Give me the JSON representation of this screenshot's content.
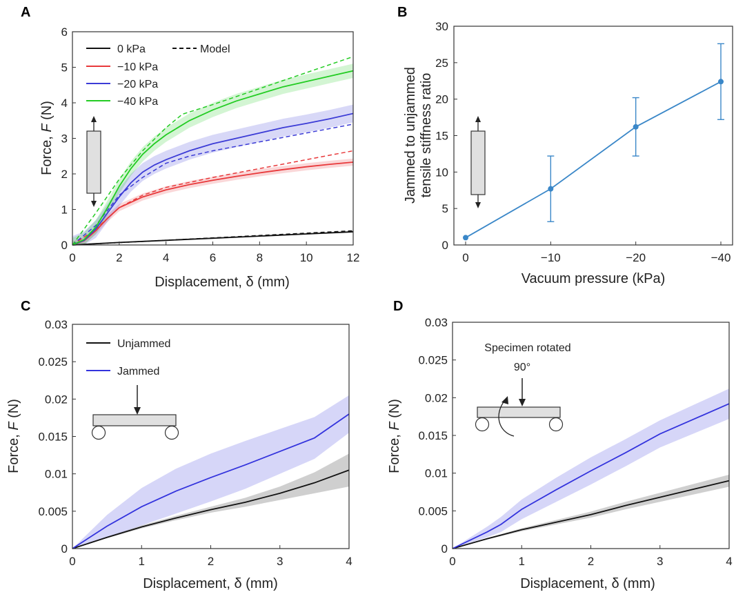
{
  "chart_data": [
    {
      "id": "A",
      "panel_label": "A",
      "type": "line",
      "xlabel_prefix": "Displacement,",
      "xlabel_symbol": "δ",
      "xlabel_unit": "(mm)",
      "ylabel_prefix": "Force,",
      "ylabel_symbol": "F",
      "ylabel_unit": "(N)",
      "xlim": [
        0,
        12
      ],
      "ylim": [
        0,
        6
      ],
      "xticks": [
        0,
        2,
        4,
        6,
        8,
        10,
        12
      ],
      "yticks": [
        0,
        1,
        2,
        3,
        4,
        5,
        6
      ],
      "grid": false,
      "legend_position": "top-left",
      "model_legend": "Model",
      "series": [
        {
          "name": "0 kPa",
          "color": "#111111",
          "x": [
            0,
            2,
            4,
            6,
            8,
            10,
            12
          ],
          "y": [
            0,
            0.07,
            0.13,
            0.19,
            0.25,
            0.31,
            0.37
          ],
          "band": 0.02,
          "model_x": [
            0,
            12
          ],
          "model_y": [
            0,
            0.4
          ]
        },
        {
          "name": "−10 kPa",
          "color": "#e8383a",
          "x": [
            0,
            0.5,
            1,
            1.5,
            2,
            3,
            4,
            5,
            6,
            7,
            8,
            9,
            10,
            11,
            12
          ],
          "y": [
            0,
            0.12,
            0.4,
            0.75,
            1.05,
            1.35,
            1.55,
            1.7,
            1.82,
            1.93,
            2.03,
            2.12,
            2.2,
            2.27,
            2.33
          ],
          "band": 0.1,
          "model_x": [
            0,
            1,
            2,
            3,
            4,
            6,
            8,
            10,
            12
          ],
          "model_y": [
            0,
            0.45,
            1.05,
            1.4,
            1.62,
            1.9,
            2.15,
            2.4,
            2.65
          ]
        },
        {
          "name": "−20 kPa",
          "color": "#3b3bd6",
          "x": [
            0,
            0.5,
            1,
            1.5,
            2,
            2.5,
            3,
            3.5,
            4,
            5,
            6,
            7,
            8,
            9,
            10,
            11,
            12
          ],
          "y": [
            0,
            0.13,
            0.45,
            0.9,
            1.35,
            1.75,
            2.05,
            2.25,
            2.4,
            2.65,
            2.85,
            3.0,
            3.15,
            3.3,
            3.42,
            3.55,
            3.7
          ],
          "band": 0.25,
          "model_x": [
            0,
            1,
            2,
            3,
            4,
            5,
            6,
            8,
            10,
            12
          ],
          "model_y": [
            0,
            0.55,
            1.4,
            1.9,
            2.3,
            2.5,
            2.65,
            2.9,
            3.15,
            3.4
          ]
        },
        {
          "name": "−40 kPa",
          "color": "#22cc22",
          "x": [
            0,
            0.5,
            1,
            1.5,
            2,
            2.5,
            3,
            3.5,
            4,
            4.5,
            5,
            6,
            7,
            8,
            9,
            10,
            11,
            12
          ],
          "y": [
            0,
            0.15,
            0.5,
            1.05,
            1.65,
            2.15,
            2.55,
            2.85,
            3.1,
            3.3,
            3.5,
            3.8,
            4.05,
            4.25,
            4.45,
            4.6,
            4.75,
            4.9
          ],
          "band": 0.2,
          "model_x": [
            0,
            1,
            2,
            3,
            4,
            4.7,
            6,
            8,
            10,
            12
          ],
          "model_y": [
            0,
            0.9,
            1.85,
            2.65,
            3.3,
            3.68,
            3.95,
            4.4,
            4.85,
            5.3
          ]
        }
      ]
    },
    {
      "id": "B",
      "panel_label": "B",
      "type": "line",
      "xlabel": "Vacuum pressure (kPa)",
      "ylabel_line1": "Jammed to unjammed",
      "ylabel_line2": "tensile stiffness ratio",
      "categories": [
        "0",
        "−10",
        "−20",
        "−40"
      ],
      "values": [
        1,
        7.7,
        16.2,
        22.4
      ],
      "err_low": [
        0,
        4.5,
        4.0,
        5.2
      ],
      "err_high": [
        0,
        4.5,
        4.0,
        5.2
      ],
      "ylim": [
        0,
        30
      ],
      "yticks": [
        0,
        5,
        10,
        15,
        20,
        25,
        30
      ],
      "color": "#3a87c8",
      "grid": false
    },
    {
      "id": "C",
      "panel_label": "C",
      "type": "line",
      "xlabel_prefix": "Displacement,",
      "xlabel_symbol": "δ",
      "xlabel_unit": "(mm)",
      "ylabel_prefix": "Force,",
      "ylabel_symbol": "F",
      "ylabel_unit": "(N)",
      "xlim": [
        0,
        4
      ],
      "ylim": [
        0,
        0.03
      ],
      "xticks": [
        0,
        1,
        2,
        3,
        4
      ],
      "yticks": [
        0,
        0.005,
        0.01,
        0.015,
        0.02,
        0.025,
        0.03
      ],
      "ytick_labels": [
        "0",
        "0.005",
        "0.01",
        "0.015",
        "0.02",
        "0.025",
        "0.03"
      ],
      "grid": false,
      "legend_position": "top-left",
      "series": [
        {
          "name": "Unjammed",
          "color": "#111111",
          "x": [
            0,
            0.5,
            1,
            1.5,
            2,
            2.5,
            3,
            3.5,
            4
          ],
          "y": [
            0,
            0.0015,
            0.0029,
            0.0041,
            0.0052,
            0.0062,
            0.0074,
            0.0088,
            0.0105
          ],
          "band": [
            0,
            0.0001,
            0.0002,
            0.0003,
            0.0004,
            0.0006,
            0.0009,
            0.0014,
            0.0022
          ]
        },
        {
          "name": "Jammed",
          "color": "#3333dd",
          "x": [
            0,
            0.5,
            1,
            1.5,
            2,
            2.5,
            3,
            3.5,
            4
          ],
          "y": [
            0,
            0.003,
            0.0056,
            0.0077,
            0.0095,
            0.0112,
            0.013,
            0.0148,
            0.018
          ],
          "band": [
            0,
            0.0015,
            0.0025,
            0.003,
            0.0032,
            0.0032,
            0.003,
            0.0028,
            0.0025
          ]
        }
      ],
      "inset_annotation": ""
    },
    {
      "id": "D",
      "panel_label": "D",
      "type": "line",
      "xlabel_prefix": "Displacement,",
      "xlabel_symbol": "δ",
      "xlabel_unit": "(mm)",
      "ylabel_prefix": "Force,",
      "ylabel_symbol": "F",
      "ylabel_unit": "(N)",
      "xlim": [
        0,
        4
      ],
      "ylim": [
        0,
        0.03
      ],
      "xticks": [
        0,
        1,
        2,
        3,
        4
      ],
      "yticks": [
        0,
        0.005,
        0.01,
        0.015,
        0.02,
        0.025,
        0.03
      ],
      "ytick_labels": [
        "0",
        "0.005",
        "0.01",
        "0.015",
        "0.02",
        "0.025",
        "0.03"
      ],
      "grid": false,
      "series": [
        {
          "name": "",
          "color": "#111111",
          "x": [
            0,
            0.5,
            1,
            1.5,
            2,
            2.5,
            3,
            3.5,
            4
          ],
          "y": [
            0,
            0.0013,
            0.0025,
            0.0035,
            0.0045,
            0.0057,
            0.0068,
            0.0079,
            0.009
          ],
          "band": [
            0,
            0.0001,
            0.0002,
            0.0003,
            0.0004,
            0.0005,
            0.0006,
            0.0007,
            0.0008
          ]
        },
        {
          "name": "",
          "color": "#3333dd",
          "x": [
            0,
            0.5,
            0.7,
            1,
            1.5,
            2,
            2.5,
            3,
            3.5,
            4
          ],
          "y": [
            0,
            0.0022,
            0.0032,
            0.0052,
            0.0078,
            0.0103,
            0.0127,
            0.0152,
            0.0172,
            0.0192
          ],
          "band": [
            0,
            0.0007,
            0.001,
            0.0013,
            0.0016,
            0.0018,
            0.0018,
            0.0018,
            0.0019,
            0.002
          ]
        }
      ],
      "inset_annotation_line1": "Specimen rotated",
      "inset_annotation_line2": "90°"
    }
  ]
}
